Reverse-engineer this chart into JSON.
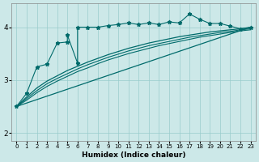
{
  "xlabel": "Humidex (Indice chaleur)",
  "bg_color": "#cce8e8",
  "line_color": "#006b6b",
  "grid_color": "#99cccc",
  "xlim": [
    -0.5,
    23.5
  ],
  "ylim": [
    1.85,
    4.45
  ],
  "yticks": [
    2,
    3,
    4
  ],
  "xticks": [
    0,
    1,
    2,
    3,
    4,
    5,
    6,
    7,
    8,
    9,
    10,
    11,
    12,
    13,
    14,
    15,
    16,
    17,
    18,
    19,
    20,
    21,
    22,
    23
  ],
  "jagged_x": [
    0,
    1,
    2,
    3,
    4,
    5,
    5,
    6,
    6,
    7,
    8,
    9,
    10,
    11,
    12,
    13,
    14,
    15,
    16,
    17,
    18,
    19,
    20,
    21,
    22,
    23
  ],
  "jagged_y": [
    2.5,
    2.75,
    3.25,
    3.3,
    3.7,
    3.72,
    3.85,
    3.32,
    4.0,
    4.0,
    4.0,
    4.03,
    4.05,
    4.08,
    4.05,
    4.08,
    4.05,
    4.1,
    4.08,
    4.25,
    4.15,
    4.07,
    4.07,
    4.02,
    3.97,
    4.0
  ],
  "line1_x": [
    0,
    23
  ],
  "line1_y": [
    2.5,
    4.0
  ],
  "line2_x": [
    0,
    1,
    2,
    3,
    4,
    5,
    6,
    7,
    8,
    9,
    10,
    11,
    12,
    13,
    14,
    15,
    16,
    17,
    18,
    19,
    20,
    21,
    22,
    23
  ],
  "line2_y": [
    2.5,
    2.68,
    2.85,
    2.98,
    3.08,
    3.18,
    3.26,
    3.34,
    3.41,
    3.48,
    3.54,
    3.6,
    3.65,
    3.7,
    3.74,
    3.78,
    3.82,
    3.85,
    3.88,
    3.91,
    3.93,
    3.95,
    3.97,
    3.99
  ],
  "line3_x": [
    0,
    1,
    2,
    3,
    4,
    5,
    6,
    7,
    8,
    9,
    10,
    11,
    12,
    13,
    14,
    15,
    16,
    17,
    18,
    19,
    20,
    21,
    22,
    23
  ],
  "line3_y": [
    2.5,
    2.65,
    2.8,
    2.93,
    3.03,
    3.12,
    3.21,
    3.29,
    3.36,
    3.43,
    3.49,
    3.55,
    3.6,
    3.65,
    3.69,
    3.73,
    3.77,
    3.81,
    3.84,
    3.87,
    3.9,
    3.92,
    3.95,
    3.97
  ],
  "line4_x": [
    0,
    1,
    2,
    3,
    4,
    5,
    6,
    7,
    8,
    9,
    10,
    11,
    12,
    13,
    14,
    15,
    16,
    17,
    18,
    19,
    20,
    21,
    22,
    23
  ],
  "line4_y": [
    2.5,
    2.62,
    2.76,
    2.88,
    2.98,
    3.07,
    3.16,
    3.23,
    3.31,
    3.38,
    3.44,
    3.5,
    3.55,
    3.6,
    3.65,
    3.69,
    3.73,
    3.77,
    3.81,
    3.84,
    3.87,
    3.9,
    3.93,
    3.95
  ]
}
